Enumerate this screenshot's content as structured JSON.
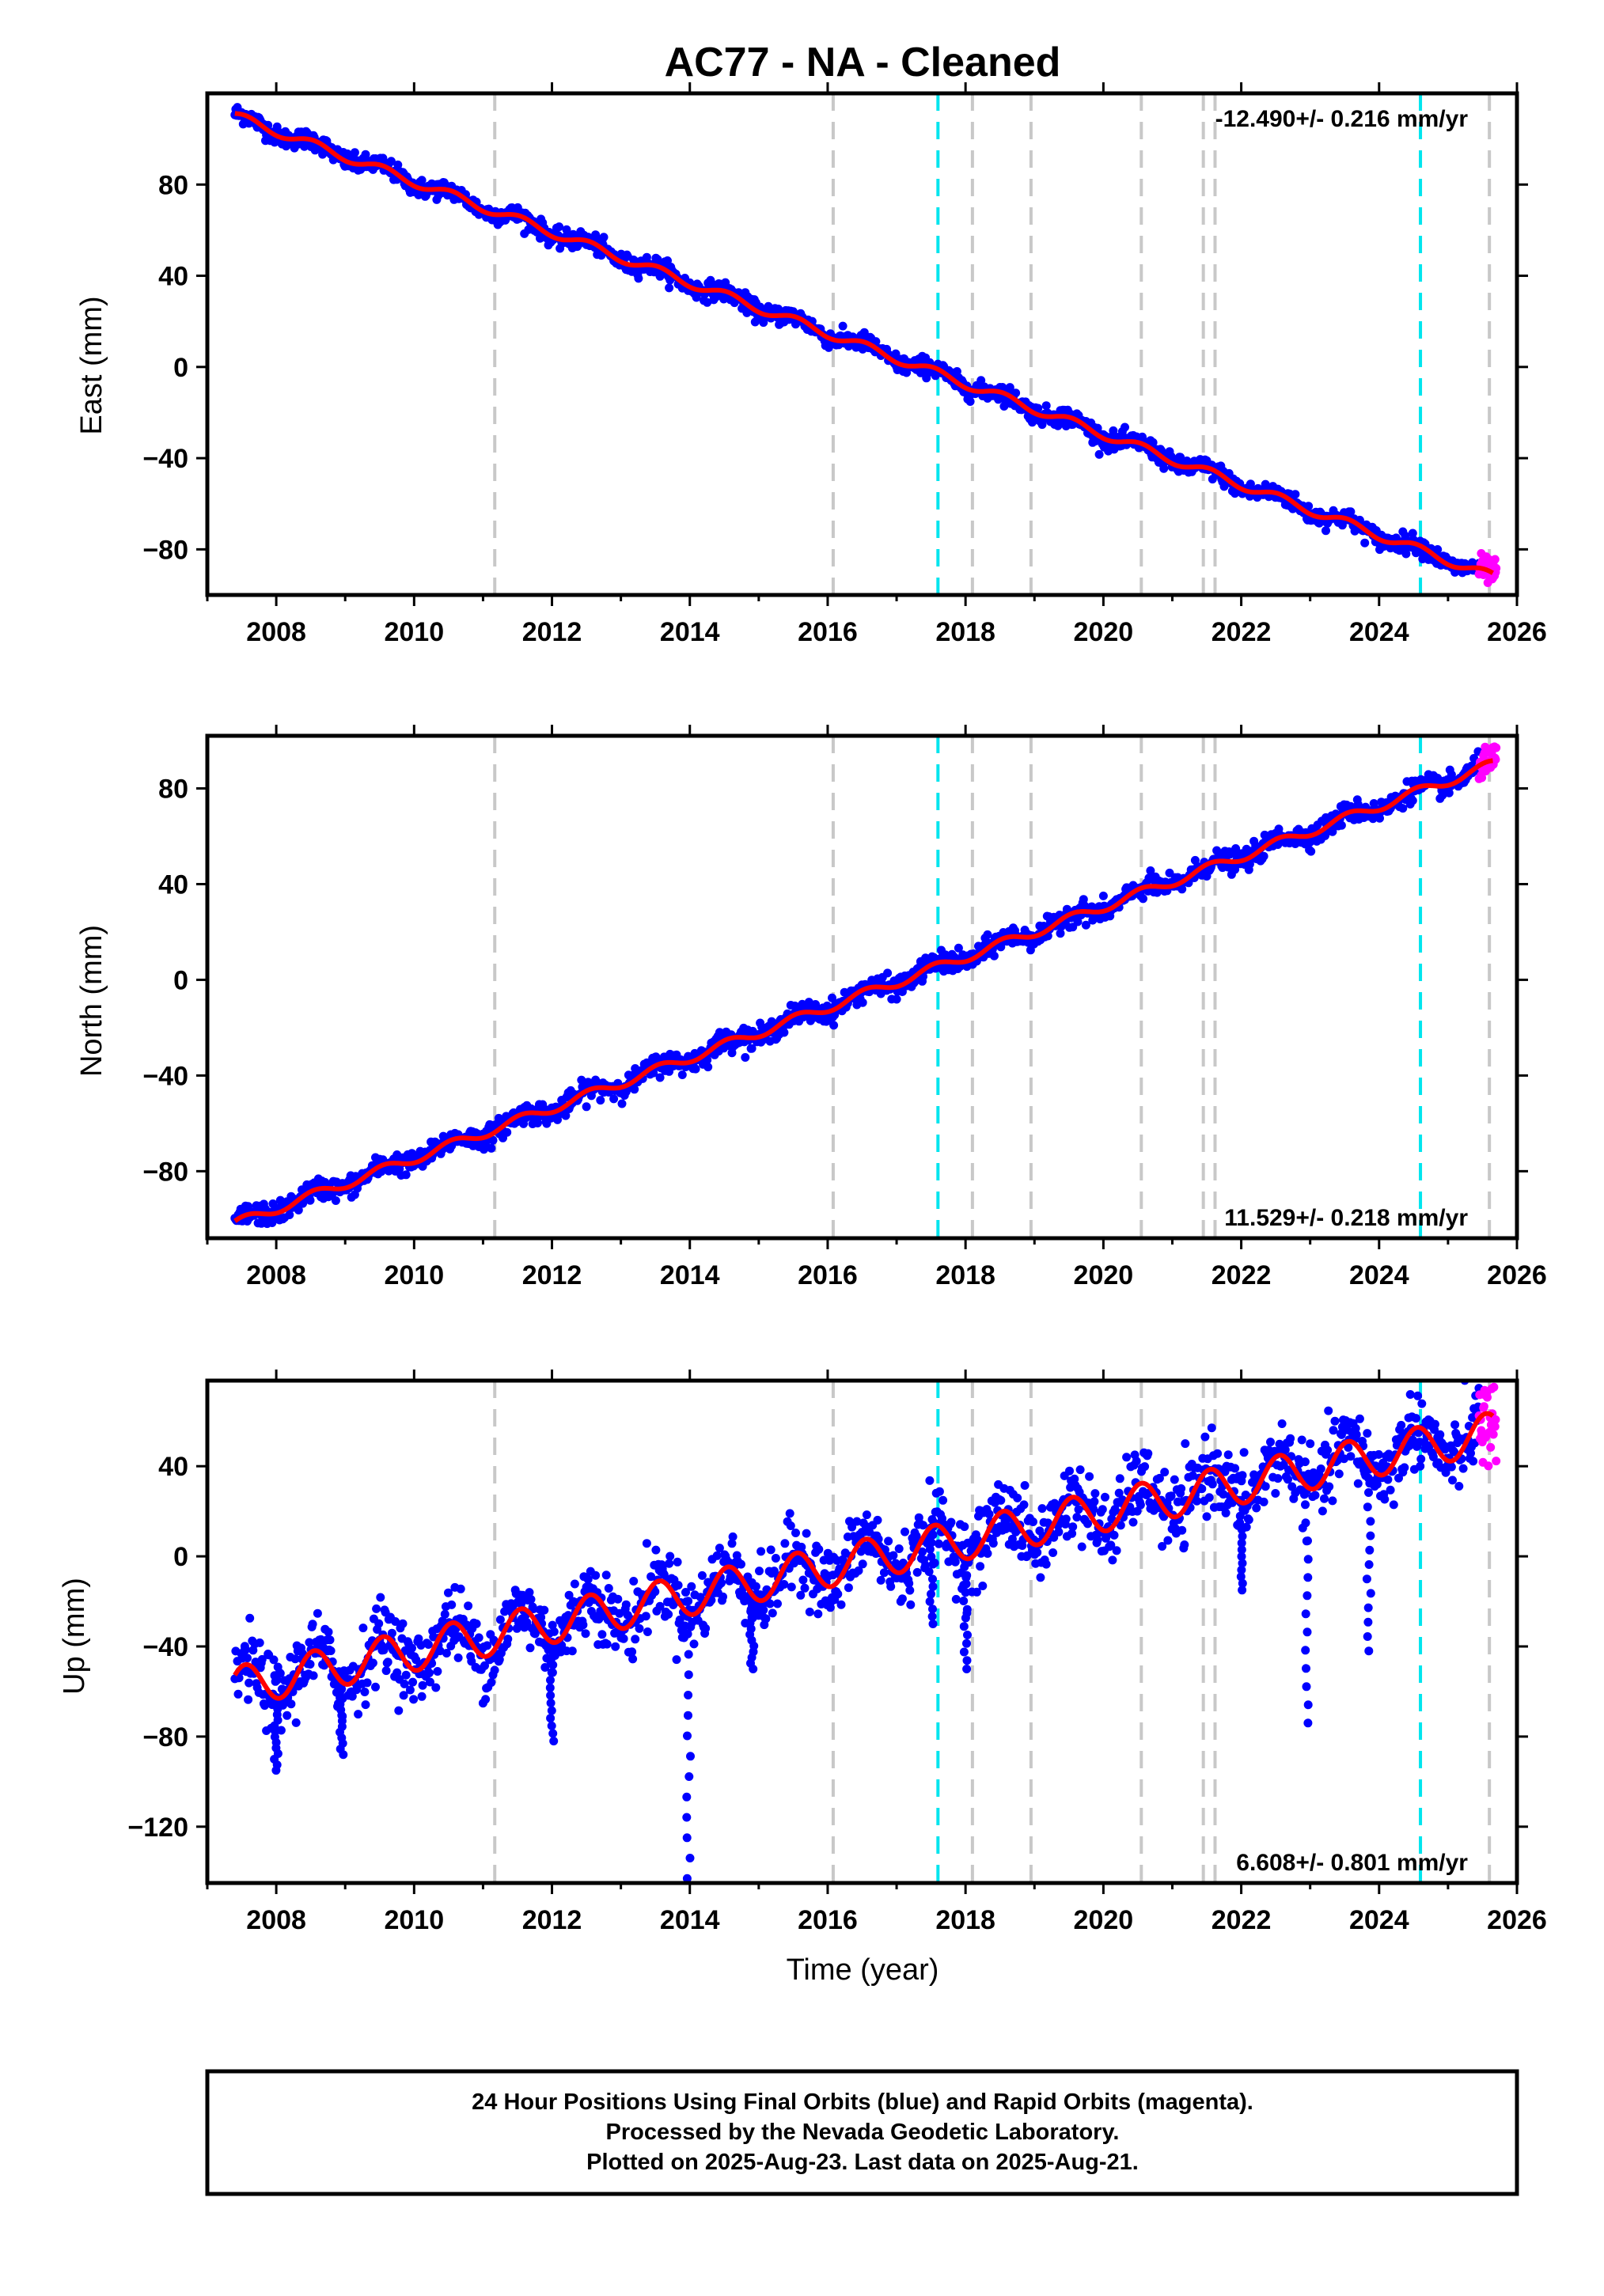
{
  "chart_data": {
    "type": "scatter",
    "title": "AC77  - NA - Cleaned",
    "xlabel": "Time (year)",
    "xlim": [
      2007.0,
      2026.0
    ],
    "x_ticks": [
      "2008",
      "2010",
      "2012",
      "2014",
      "2016",
      "2018",
      "2020",
      "2022",
      "2024",
      "2026"
    ],
    "x_tick_values": [
      2008,
      2010,
      2012,
      2014,
      2016,
      2018,
      2020,
      2022,
      2024,
      2026
    ],
    "colors": {
      "final_orbits": "#0000ff",
      "rapid_orbits": "#ff00ff",
      "model": "#ff0000",
      "equipment_change": "#c8c8c8",
      "earthquake": "#00e5ee"
    },
    "grey_dashed_lines": [
      2011.17,
      2016.08,
      2018.1,
      2018.95,
      2020.55,
      2021.45,
      2021.62,
      2025.6
    ],
    "cyan_dashed_lines": [
      2017.6,
      2024.6
    ],
    "panels": [
      {
        "name": "east",
        "ylabel": "East (mm)",
        "ylim": [
          -100,
          120
        ],
        "y_ticks": [
          "80",
          "40",
          "0",
          "−40",
          "−80"
        ],
        "y_tick_values": [
          80,
          40,
          0,
          -40,
          -80
        ],
        "rate_text": "-12.490+/- 0.216 mm/yr",
        "rate_position": "top-right",
        "trend": [
          [
            2007.4,
            110
          ],
          [
            2025.65,
            -92
          ]
        ],
        "seasonal_amplitude": 2.0,
        "noise": 2.0,
        "rapid_start": 2025.45
      },
      {
        "name": "north",
        "ylabel": "North (mm)",
        "ylim": [
          -108,
          102
        ],
        "y_ticks": [
          "80",
          "40",
          "0",
          "−40",
          "−80"
        ],
        "y_tick_values": [
          80,
          40,
          0,
          -40,
          -80
        ],
        "rate_text": "11.529+/- 0.218 mm/yr",
        "rate_position": "bottom-right",
        "trend": [
          [
            2007.4,
            -102
          ],
          [
            2025.65,
            90
          ]
        ],
        "seasonal_amplitude": 2.0,
        "noise": 2.2,
        "rapid_start": 2025.45
      },
      {
        "name": "up",
        "ylabel": "Up (mm)",
        "ylim": [
          -145,
          78
        ],
        "y_ticks": [
          "40",
          "0",
          "−40",
          "−80",
          "−120"
        ],
        "y_tick_values": [
          40,
          0,
          -40,
          -80,
          -120
        ],
        "rate_text": "6.608+/- 0.801 mm/yr",
        "rate_position": "bottom-right",
        "trend": [
          [
            2007.4,
            -58
          ],
          [
            2025.65,
            55
          ]
        ],
        "seasonal_amplitude": 9.0,
        "noise": 8.0,
        "rapid_start": 2025.45,
        "outlier_drops": [
          {
            "x": 2008.0,
            "min": -95
          },
          {
            "x": 2008.95,
            "min": -88
          },
          {
            "x": 2012.0,
            "min": -82
          },
          {
            "x": 2013.98,
            "min": -143
          },
          {
            "x": 2014.9,
            "min": -50
          },
          {
            "x": 2017.5,
            "min": -30
          },
          {
            "x": 2018.0,
            "min": -50
          },
          {
            "x": 2022.0,
            "min": -15
          },
          {
            "x": 2022.95,
            "min": -74
          },
          {
            "x": 2023.85,
            "min": -42
          }
        ]
      }
    ]
  },
  "footer": {
    "line1": "24 Hour Positions Using Final Orbits (blue) and Rapid Orbits (magenta).",
    "line2": "Processed by the Nevada Geodetic Laboratory.",
    "line3": "Plotted on 2025-Aug-23. Last data on 2025-Aug-21."
  }
}
